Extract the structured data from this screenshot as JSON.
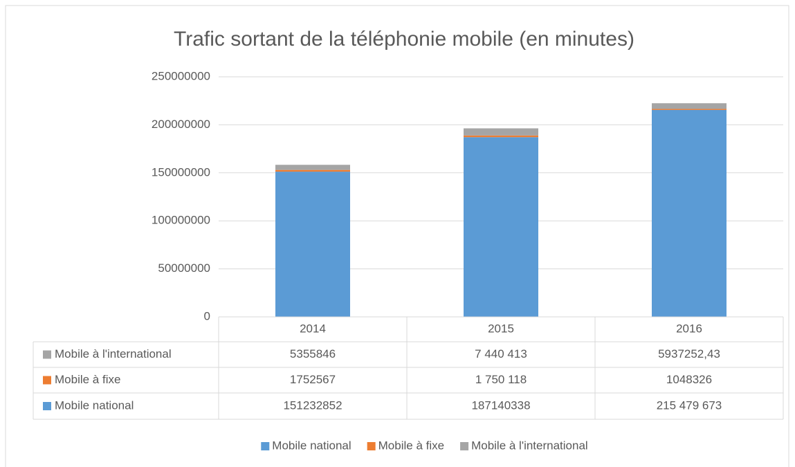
{
  "chart_data": {
    "type": "bar",
    "stacked": true,
    "title": "Trafic sortant de la téléphonie mobile (en minutes)",
    "categories": [
      "2014",
      "2015",
      "2016"
    ],
    "series": [
      {
        "name": "Mobile national",
        "color": "#5b9bd5",
        "values": [
          151232852,
          187140338,
          215479673
        ],
        "value_labels": [
          "151232852",
          "187140338",
          "215 479 673"
        ]
      },
      {
        "name": "Mobile à fixe",
        "color": "#ed7d31",
        "values": [
          1752567,
          1750118,
          1048326
        ],
        "value_labels": [
          "1752567",
          "1 750 118",
          "1048326"
        ]
      },
      {
        "name": "Mobile à l'international",
        "color": "#a5a5a5",
        "values": [
          5355846,
          7440413,
          5937252.43
        ],
        "value_labels": [
          "5355846",
          "7 440 413",
          "5937252,43"
        ]
      }
    ],
    "ylim": [
      0,
      250000000
    ],
    "yticks": [
      0,
      50000000,
      100000000,
      150000000,
      200000000,
      250000000
    ],
    "grid": true,
    "legend": "bottom",
    "data_table": true
  }
}
